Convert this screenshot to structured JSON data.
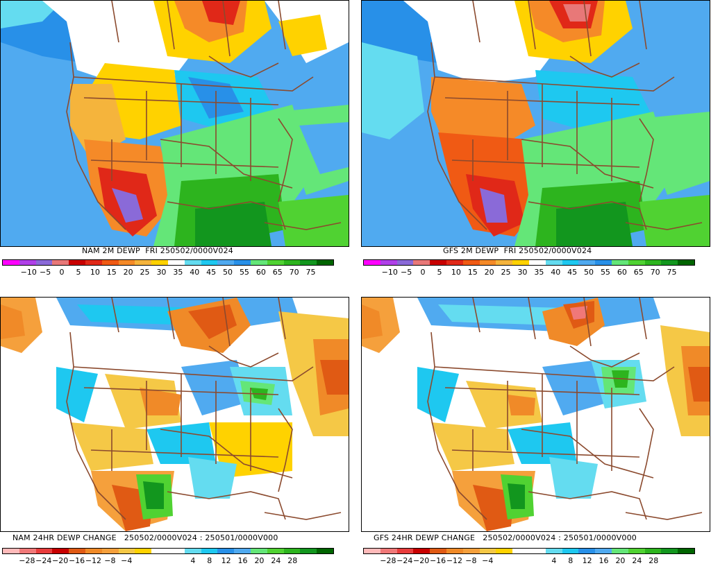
{
  "colors": {
    "dewp": [
      "#ff00ff",
      "#b040e8",
      "#8a6ad8",
      "#e87878",
      "#c80000",
      "#e02818",
      "#f05a14",
      "#f58a28",
      "#f5b43c",
      "#ffd200",
      "#ffffff",
      "#64dcf0",
      "#1ec8f0",
      "#50aaf0",
      "#2890e8",
      "#64e678",
      "#50d232",
      "#2db41e",
      "#12961e",
      "#006400"
    ],
    "change": [
      "#ffbaba",
      "#f07878",
      "#e83c3c",
      "#c80000",
      "#e05a14",
      "#f08a28",
      "#f5a03c",
      "#f5c846",
      "#ffd200",
      "#ffffff",
      "#ffffff",
      "#64dcf0",
      "#1ec8f0",
      "#2890e8",
      "#50aaf0",
      "#64e678",
      "#50d232",
      "#2db41e",
      "#12961e",
      "#006400"
    ],
    "land_base": "#ffffff",
    "border": "#8b4a2e"
  },
  "panels": [
    {
      "caption": "NAM 2M DEWP  FRI 250502/0000V024",
      "ticks": [
        "-10",
        "-5",
        "0",
        "5",
        "10",
        "15",
        "20",
        "25",
        "30",
        "35",
        "40",
        "45",
        "50",
        "55",
        "60",
        "65",
        "70",
        "75"
      ],
      "palette": "dewp"
    },
    {
      "caption": "GFS 2M DEWP  FRI 250502/0000V024",
      "ticks": [
        "-10",
        "-5",
        "0",
        "5",
        "10",
        "15",
        "20",
        "25",
        "30",
        "35",
        "40",
        "45",
        "50",
        "55",
        "60",
        "65",
        "70",
        "75"
      ],
      "palette": "dewp"
    },
    {
      "caption": "NAM 24HR DEWP CHANGE   250502/0000V024 : 250501/0000V000",
      "ticks": [
        "-28",
        "-24",
        "-20",
        "-16",
        "-12",
        "-8",
        "-4",
        "4",
        "8",
        "12",
        "16",
        "20",
        "24",
        "28"
      ],
      "palette": "change"
    },
    {
      "caption": "GFS 24HR DEWP CHANGE   250502/0000V024 : 250501/0000V000",
      "ticks": [
        "-28",
        "-24",
        "-20",
        "-16",
        "-12",
        "-8",
        "-4",
        "4",
        "8",
        "12",
        "16",
        "20",
        "24",
        "28"
      ],
      "palette": "change"
    }
  ]
}
